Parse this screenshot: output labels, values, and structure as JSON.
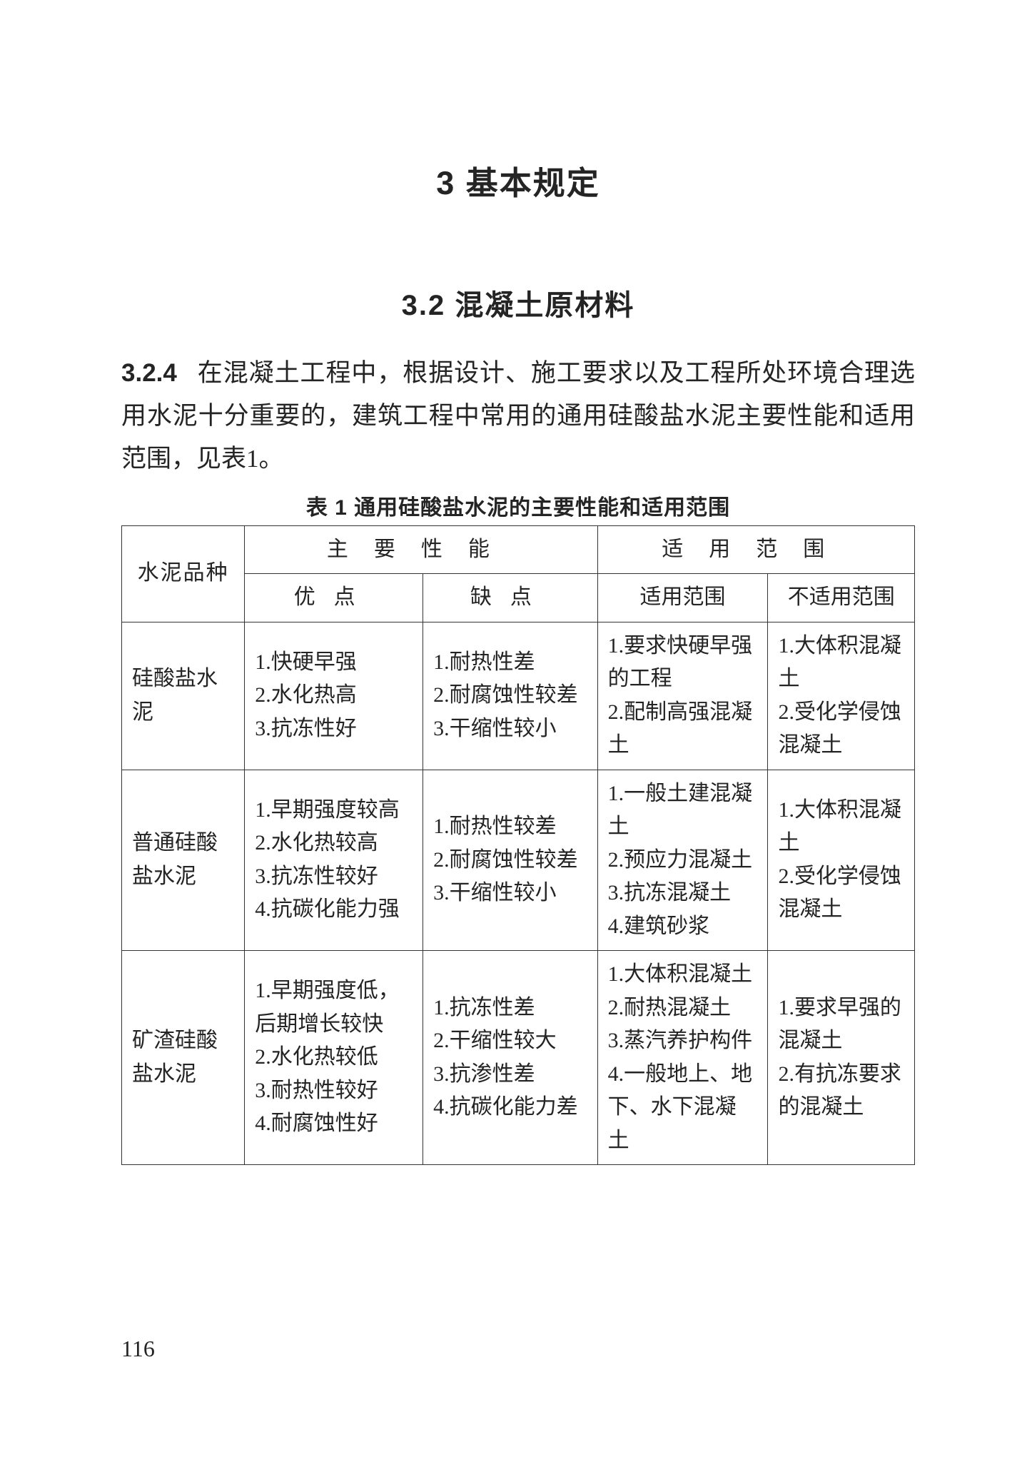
{
  "chapter_title": "3   基本规定",
  "section_title": "3.2   混凝土原材料",
  "clause_number": "3.2.4",
  "paragraph": "在混凝土工程中，根据设计、施工要求以及工程所处环境合理选用水泥十分重要的，建筑工程中常用的通用硅酸盐水泥主要性能和适用范围，见表1。",
  "table_caption": "表 1   通用硅酸盐水泥的主要性能和适用范围",
  "page_number": "116",
  "colors": {
    "text": "#242424",
    "border": "#333333",
    "background": "#ffffff"
  },
  "table": {
    "header": {
      "corner": "水泥品种",
      "group1": "主要性能",
      "group2": "适用范围",
      "sub": {
        "c2": "优点",
        "c3": "缺点",
        "c4": "适用范围",
        "c5": "不适用范围"
      }
    },
    "rows": [
      {
        "name": "硅酸盐水泥",
        "pros": "1.快硬早强\n2.水化热高\n3.抗冻性好",
        "cons": "1.耐热性差\n2.耐腐蚀性较差\n3.干缩性较小",
        "apply": "1.要求快硬早强的工程\n2.配制高强混凝土",
        "not_apply": "1.大体积混凝土\n2.受化学侵蚀混凝土"
      },
      {
        "name": "普通硅酸盐水泥",
        "pros": "1.早期强度较高\n2.水化热较高\n3.抗冻性较好\n4.抗碳化能力强",
        "cons": "1.耐热性较差\n2.耐腐蚀性较差\n3.干缩性较小",
        "apply": "1.一般土建混凝土\n2.预应力混凝土\n3.抗冻混凝土\n4.建筑砂浆",
        "not_apply": "1.大体积混凝土\n2.受化学侵蚀混凝土"
      },
      {
        "name": "矿渣硅酸盐水泥",
        "pros": "1.早期强度低，后期增长较快\n2.水化热较低\n3.耐热性较好\n4.耐腐蚀性好",
        "cons": "1.抗冻性差\n2.干缩性较大\n3.抗渗性差\n4.抗碳化能力差",
        "apply": "1.大体积混凝土\n2.耐热混凝土\n3.蒸汽养护构件\n4.一般地上、地下、水下混凝土",
        "not_apply": "1.要求早强的混凝土\n2.有抗冻要求的混凝土"
      }
    ]
  }
}
